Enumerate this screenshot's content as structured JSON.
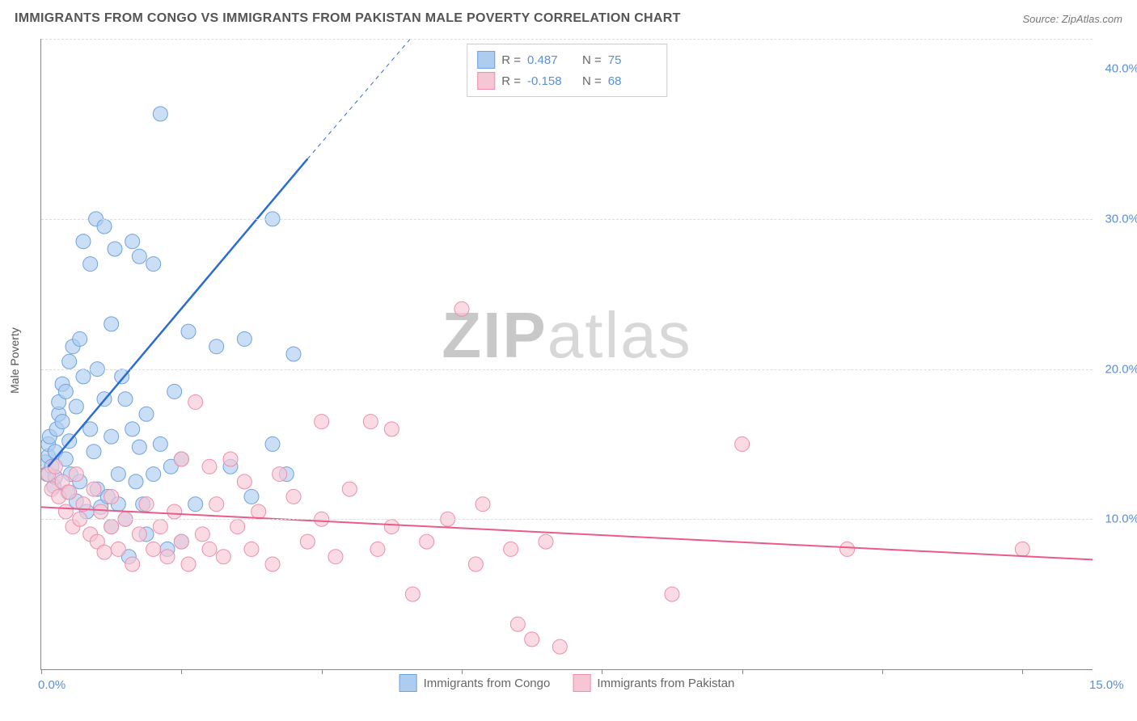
{
  "header": {
    "title": "IMMIGRANTS FROM CONGO VS IMMIGRANTS FROM PAKISTAN MALE POVERTY CORRELATION CHART",
    "source_prefix": "Source: ",
    "source_name": "ZipAtlas.com"
  },
  "watermark": {
    "part1": "ZIP",
    "part2": "atlas"
  },
  "chart": {
    "type": "scatter",
    "xlim": [
      0,
      15
    ],
    "ylim": [
      0,
      42
    ],
    "y_gridlines": [
      10,
      20,
      30,
      42
    ],
    "y_tick_labels": {
      "10": "10.0%",
      "20": "20.0%",
      "30": "30.0%",
      "40": "40.0%"
    },
    "x_ticks": [
      0,
      2,
      4,
      6,
      8,
      10,
      12,
      14
    ],
    "x_tick_labels": {
      "0": "0.0%",
      "15": "15.0%"
    },
    "ylabel": "Male Poverty",
    "background_color": "#ffffff",
    "grid_color": "#dddddd",
    "series": [
      {
        "name": "Immigrants from Congo",
        "fill": "#aeccf0",
        "stroke": "#6fa3dd",
        "opacity": 0.65,
        "marker_radius": 9,
        "R": "0.487",
        "N": "75",
        "regression": {
          "x1": 0.1,
          "y1": 13.5,
          "x2": 3.8,
          "y2": 34.0,
          "dash_x2": 6.0,
          "dash_y2": 46.0,
          "color": "#2b6cd4",
          "width": 2.5
        },
        "points": [
          [
            0.05,
            13.8
          ],
          [
            0.1,
            14.2
          ],
          [
            0.1,
            15.0
          ],
          [
            0.12,
            15.5
          ],
          [
            0.08,
            13.0
          ],
          [
            0.15,
            13.5
          ],
          [
            0.18,
            12.2
          ],
          [
            0.2,
            12.8
          ],
          [
            0.2,
            14.5
          ],
          [
            0.22,
            16.0
          ],
          [
            0.25,
            17.0
          ],
          [
            0.25,
            17.8
          ],
          [
            0.3,
            16.5
          ],
          [
            0.3,
            19.0
          ],
          [
            0.35,
            14.0
          ],
          [
            0.35,
            18.5
          ],
          [
            0.38,
            11.8
          ],
          [
            0.4,
            15.2
          ],
          [
            0.4,
            20.5
          ],
          [
            0.42,
            13.0
          ],
          [
            0.45,
            21.5
          ],
          [
            0.5,
            11.2
          ],
          [
            0.5,
            17.5
          ],
          [
            0.55,
            22.0
          ],
          [
            0.55,
            12.5
          ],
          [
            0.6,
            19.5
          ],
          [
            0.6,
            28.5
          ],
          [
            0.65,
            10.5
          ],
          [
            0.7,
            16.0
          ],
          [
            0.7,
            27.0
          ],
          [
            0.75,
            14.5
          ],
          [
            0.78,
            30.0
          ],
          [
            0.8,
            12.0
          ],
          [
            0.8,
            20.0
          ],
          [
            0.85,
            10.8
          ],
          [
            0.9,
            18.0
          ],
          [
            0.9,
            29.5
          ],
          [
            0.95,
            11.5
          ],
          [
            1.0,
            15.5
          ],
          [
            1.0,
            9.5
          ],
          [
            1.0,
            23.0
          ],
          [
            1.05,
            28.0
          ],
          [
            1.1,
            13.0
          ],
          [
            1.1,
            11.0
          ],
          [
            1.15,
            19.5
          ],
          [
            1.2,
            18.0
          ],
          [
            1.2,
            10.0
          ],
          [
            1.25,
            7.5
          ],
          [
            1.3,
            16.0
          ],
          [
            1.3,
            28.5
          ],
          [
            1.35,
            12.5
          ],
          [
            1.4,
            14.8
          ],
          [
            1.4,
            27.5
          ],
          [
            1.45,
            11.0
          ],
          [
            1.5,
            17.0
          ],
          [
            1.5,
            9.0
          ],
          [
            1.6,
            13.0
          ],
          [
            1.6,
            27.0
          ],
          [
            1.7,
            15.0
          ],
          [
            1.7,
            37.0
          ],
          [
            1.8,
            8.0
          ],
          [
            1.85,
            13.5
          ],
          [
            1.9,
            18.5
          ],
          [
            2.0,
            8.5
          ],
          [
            2.0,
            14.0
          ],
          [
            2.1,
            22.5
          ],
          [
            2.2,
            11.0
          ],
          [
            2.5,
            21.5
          ],
          [
            2.7,
            13.5
          ],
          [
            2.9,
            22.0
          ],
          [
            3.0,
            11.5
          ],
          [
            3.3,
            30.0
          ],
          [
            3.3,
            15.0
          ],
          [
            3.5,
            13.0
          ],
          [
            3.6,
            21.0
          ]
        ]
      },
      {
        "name": "Immigrants from Pakistan",
        "fill": "#f7c6d4",
        "stroke": "#ec8fab",
        "opacity": 0.65,
        "marker_radius": 9,
        "R": "-0.158",
        "N": "68",
        "regression": {
          "x1": 0.0,
          "y1": 10.8,
          "x2": 15.0,
          "y2": 7.3,
          "color": "#e85b8a",
          "width": 2.0
        },
        "points": [
          [
            0.1,
            13.0
          ],
          [
            0.15,
            12.0
          ],
          [
            0.2,
            13.5
          ],
          [
            0.25,
            11.5
          ],
          [
            0.3,
            12.5
          ],
          [
            0.35,
            10.5
          ],
          [
            0.4,
            11.8
          ],
          [
            0.45,
            9.5
          ],
          [
            0.5,
            13.0
          ],
          [
            0.55,
            10.0
          ],
          [
            0.6,
            11.0
          ],
          [
            0.7,
            9.0
          ],
          [
            0.75,
            12.0
          ],
          [
            0.8,
            8.5
          ],
          [
            0.85,
            10.5
          ],
          [
            0.9,
            7.8
          ],
          [
            1.0,
            9.5
          ],
          [
            1.0,
            11.5
          ],
          [
            1.1,
            8.0
          ],
          [
            1.2,
            10.0
          ],
          [
            1.3,
            7.0
          ],
          [
            1.4,
            9.0
          ],
          [
            1.5,
            11.0
          ],
          [
            1.6,
            8.0
          ],
          [
            1.7,
            9.5
          ],
          [
            1.8,
            7.5
          ],
          [
            1.9,
            10.5
          ],
          [
            2.0,
            8.5
          ],
          [
            2.0,
            14.0
          ],
          [
            2.1,
            7.0
          ],
          [
            2.2,
            17.8
          ],
          [
            2.3,
            9.0
          ],
          [
            2.4,
            13.5
          ],
          [
            2.4,
            8.0
          ],
          [
            2.5,
            11.0
          ],
          [
            2.6,
            7.5
          ],
          [
            2.7,
            14.0
          ],
          [
            2.8,
            9.5
          ],
          [
            2.9,
            12.5
          ],
          [
            3.0,
            8.0
          ],
          [
            3.1,
            10.5
          ],
          [
            3.3,
            7.0
          ],
          [
            3.4,
            13.0
          ],
          [
            3.6,
            11.5
          ],
          [
            3.8,
            8.5
          ],
          [
            4.0,
            10.0
          ],
          [
            4.0,
            16.5
          ],
          [
            4.2,
            7.5
          ],
          [
            4.4,
            12.0
          ],
          [
            4.7,
            16.5
          ],
          [
            4.8,
            8.0
          ],
          [
            5.0,
            9.5
          ],
          [
            5.0,
            16.0
          ],
          [
            5.3,
            5.0
          ],
          [
            5.5,
            8.5
          ],
          [
            5.8,
            10.0
          ],
          [
            6.0,
            24.0
          ],
          [
            6.2,
            7.0
          ],
          [
            6.3,
            11.0
          ],
          [
            6.7,
            8.0
          ],
          [
            6.8,
            3.0
          ],
          [
            7.0,
            2.0
          ],
          [
            7.2,
            8.5
          ],
          [
            7.4,
            1.5
          ],
          [
            9.0,
            5.0
          ],
          [
            10.0,
            15.0
          ],
          [
            11.5,
            8.0
          ],
          [
            14.0,
            8.0
          ]
        ]
      }
    ],
    "top_legend_labels": {
      "R": "R =",
      "N": "N ="
    },
    "bottom_legend": [
      {
        "label": "Immigrants from Congo",
        "fill": "#aeccf0",
        "stroke": "#6fa3dd"
      },
      {
        "label": "Immigrants from Pakistan",
        "fill": "#f7c6d4",
        "stroke": "#ec8fab"
      }
    ]
  }
}
